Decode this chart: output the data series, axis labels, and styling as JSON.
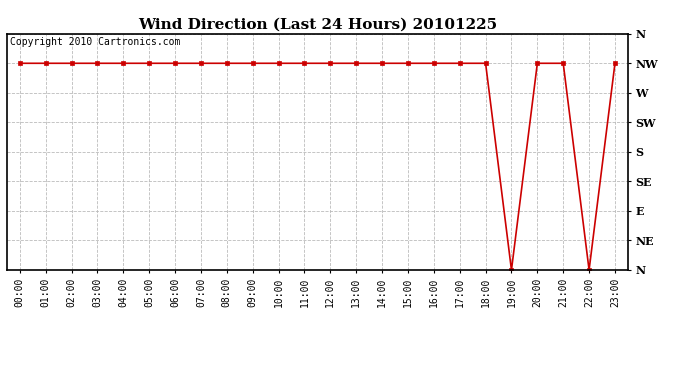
{
  "title": "Wind Direction (Last 24 Hours) 20101225",
  "copyright_text": "Copyright 2010 Cartronics.com",
  "background_color": "#ffffff",
  "plot_background": "#ffffff",
  "line_color": "#cc0000",
  "marker_color": "#cc0000",
  "grid_color": "#bbbbbb",
  "y_labels": [
    "N",
    "NE",
    "E",
    "SE",
    "S",
    "SW",
    "W",
    "NW",
    "N"
  ],
  "y_values": [
    0,
    45,
    90,
    135,
    180,
    225,
    270,
    315,
    360
  ],
  "x_hours": [
    0,
    1,
    2,
    3,
    4,
    5,
    6,
    7,
    8,
    9,
    10,
    11,
    12,
    13,
    14,
    15,
    16,
    17,
    18,
    19,
    20,
    21,
    22,
    23
  ],
  "wind_data": [
    315,
    315,
    315,
    315,
    315,
    315,
    315,
    315,
    315,
    315,
    315,
    315,
    315,
    315,
    315,
    315,
    315,
    315,
    315,
    0,
    315,
    315,
    0,
    315
  ],
  "xlim_min": -0.5,
  "xlim_max": 23.5,
  "ylim_min": 0,
  "ylim_max": 360,
  "title_fontsize": 11,
  "ylabel_fontsize": 8,
  "xlabel_fontsize": 7,
  "copyright_fontsize": 7
}
